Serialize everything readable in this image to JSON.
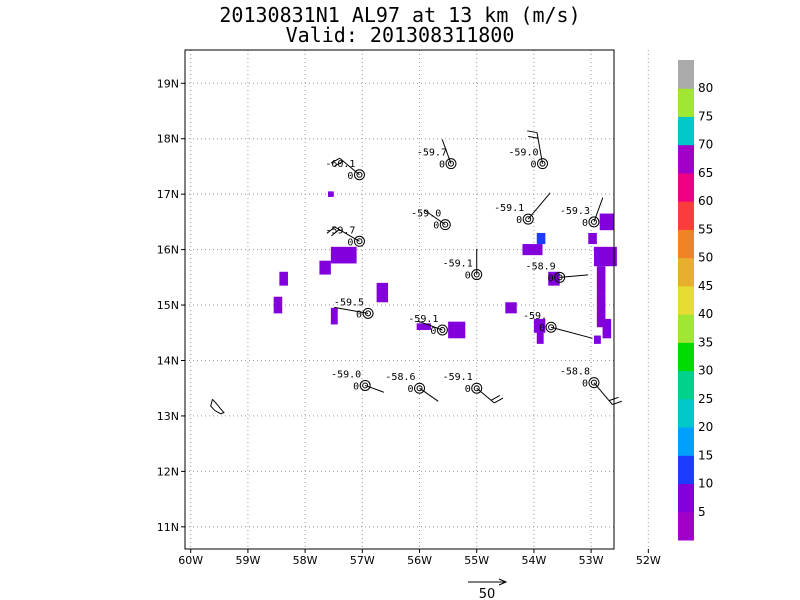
{
  "title": "20130831N1 AL97 at 13 km (m/s)",
  "subtitle": "Valid: 201308311800",
  "chart_data": {
    "type": "scatter",
    "description_units": "m/s",
    "xlim": [
      -60.1,
      -52.6
    ],
    "ylim": [
      10.6,
      19.6
    ],
    "x_ticks": [
      {
        "v": -60,
        "label": "60W"
      },
      {
        "v": -59,
        "label": "59W"
      },
      {
        "v": -58,
        "label": "58W"
      },
      {
        "v": -57,
        "label": "57W"
      },
      {
        "v": -56,
        "label": "56W"
      },
      {
        "v": -55,
        "label": "55W"
      },
      {
        "v": -54,
        "label": "54W"
      },
      {
        "v": -53,
        "label": "53W"
      },
      {
        "v": -52,
        "label": "52W"
      }
    ],
    "y_ticks": [
      {
        "v": 11,
        "label": "11N"
      },
      {
        "v": 12,
        "label": "12N"
      },
      {
        "v": 13,
        "label": "13N"
      },
      {
        "v": 14,
        "label": "14N"
      },
      {
        "v": 15,
        "label": "15N"
      },
      {
        "v": 16,
        "label": "16N"
      },
      {
        "v": 17,
        "label": "17N"
      },
      {
        "v": 18,
        "label": "18N"
      },
      {
        "v": 19,
        "label": "19N"
      }
    ],
    "grid": true,
    "stations": [
      {
        "lon": -57.05,
        "lat": 17.35,
        "temp": "-60.1",
        "wind": "0",
        "barb_dir": 230,
        "barb_len": 0.45,
        "flags": 2
      },
      {
        "lon": -55.45,
        "lat": 17.55,
        "temp": "-59.7",
        "wind": "0",
        "barb_dir": 200,
        "barb_len": 0.45,
        "flags": 0
      },
      {
        "lon": -53.85,
        "lat": 17.55,
        "temp": "-59.0",
        "wind": "0",
        "barb_dir": 190,
        "barb_len": 0.55,
        "flags": 2
      },
      {
        "lon": -57.05,
        "lat": 16.15,
        "temp": "-59.7",
        "wind": "0",
        "barb_dir": 240,
        "barb_len": 0.5,
        "flags": 2
      },
      {
        "lon": -55.55,
        "lat": 16.45,
        "temp": "-59.0",
        "wind": "0",
        "barb_dir": 235,
        "barb_len": 0.45,
        "flags": 0
      },
      {
        "lon": -54.1,
        "lat": 16.55,
        "temp": "-59.1",
        "wind": "0",
        "barb_dir": 140,
        "barb_len": 0.6,
        "flags": 0
      },
      {
        "lon": -52.95,
        "lat": 16.5,
        "temp": "-59.3",
        "wind": "0",
        "barb_dir": 160,
        "barb_len": 0.45,
        "flags": 0
      },
      {
        "lon": -55.0,
        "lat": 15.55,
        "temp": "-59.1",
        "wind": "0",
        "barb_dir": 180,
        "barb_len": 0.45,
        "flags": 0
      },
      {
        "lon": -53.55,
        "lat": 15.5,
        "temp": "-58.9",
        "wind": "0",
        "barb_dir": 95,
        "barb_len": 0.5,
        "flags": 0
      },
      {
        "lon": -56.9,
        "lat": 14.85,
        "temp": "-59.5",
        "wind": "0",
        "barb_dir": 260,
        "barb_len": 0.6,
        "flags": 0
      },
      {
        "lon": -55.6,
        "lat": 14.55,
        "temp": "-59.1",
        "wind": "0",
        "barb_dir": 250,
        "barb_len": 0.45,
        "flags": 0
      },
      {
        "lon": -53.7,
        "lat": 14.6,
        "temp": "-59.",
        "wind": "0",
        "barb_dir": 75,
        "barb_len": 0.75,
        "flags": 0
      },
      {
        "lon": -56.95,
        "lat": 13.55,
        "temp": "-59.0",
        "wind": "0",
        "barb_dir": 70,
        "barb_len": 0.35,
        "flags": 0
      },
      {
        "lon": -56.0,
        "lat": 13.5,
        "temp": "-58.6",
        "wind": "0",
        "barb_dir": 55,
        "barb_len": 0.4,
        "flags": 0
      },
      {
        "lon": -55.0,
        "lat": 13.5,
        "temp": "-59.1",
        "wind": "0",
        "barb_dir": 50,
        "barb_len": 0.4,
        "flags": 2
      },
      {
        "lon": -52.95,
        "lat": 13.6,
        "temp": "-58.8",
        "wind": "0",
        "barb_dir": 40,
        "barb_len": 0.5,
        "flags": 2
      }
    ],
    "wind_cells": [
      {
        "lon": -57.6,
        "lat": 16.95,
        "w": 0.1,
        "h": 0.1,
        "c": 1
      },
      {
        "lon": -57.55,
        "lat": 15.75,
        "w": 0.45,
        "h": 0.3,
        "c": 1
      },
      {
        "lon": -57.75,
        "lat": 15.55,
        "w": 0.2,
        "h": 0.25,
        "c": 1
      },
      {
        "lon": -58.45,
        "lat": 15.35,
        "w": 0.15,
        "h": 0.25,
        "c": 1
      },
      {
        "lon": -58.55,
        "lat": 14.85,
        "w": 0.15,
        "h": 0.3,
        "c": 1
      },
      {
        "lon": -57.55,
        "lat": 14.65,
        "w": 0.12,
        "h": 0.3,
        "c": 1
      },
      {
        "lon": -56.75,
        "lat": 15.05,
        "w": 0.2,
        "h": 0.35,
        "c": 1
      },
      {
        "lon": -56.05,
        "lat": 14.55,
        "w": 0.25,
        "h": 0.12,
        "c": 1
      },
      {
        "lon": -55.5,
        "lat": 14.4,
        "w": 0.3,
        "h": 0.3,
        "c": 1
      },
      {
        "lon": -54.5,
        "lat": 14.85,
        "w": 0.2,
        "h": 0.2,
        "c": 1
      },
      {
        "lon": -53.95,
        "lat": 16.1,
        "w": 0.15,
        "h": 0.2,
        "c": 2
      },
      {
        "lon": -54.2,
        "lat": 15.9,
        "w": 0.35,
        "h": 0.2,
        "c": 1
      },
      {
        "lon": -53.75,
        "lat": 15.35,
        "w": 0.2,
        "h": 0.25,
        "c": 1
      },
      {
        "lon": -54.0,
        "lat": 14.5,
        "w": 0.2,
        "h": 0.25,
        "c": 1
      },
      {
        "lon": -53.95,
        "lat": 14.3,
        "w": 0.12,
        "h": 0.25,
        "c": 1
      },
      {
        "lon": -52.85,
        "lat": 16.35,
        "w": 0.25,
        "h": 0.3,
        "c": 1
      },
      {
        "lon": -53.05,
        "lat": 16.1,
        "w": 0.15,
        "h": 0.2,
        "c": 1
      },
      {
        "lon": -52.95,
        "lat": 15.7,
        "w": 0.4,
        "h": 0.35,
        "c": 1
      },
      {
        "lon": -52.9,
        "lat": 15.2,
        "w": 0.15,
        "h": 0.5,
        "c": 1
      },
      {
        "lon": -52.9,
        "lat": 14.6,
        "w": 0.15,
        "h": 0.6,
        "c": 1
      },
      {
        "lon": -52.8,
        "lat": 14.4,
        "w": 0.15,
        "h": 0.35,
        "c": 1
      },
      {
        "lon": -52.95,
        "lat": 14.3,
        "w": 0.12,
        "h": 0.15,
        "c": 1
      }
    ],
    "land_outline": [
      [
        -59.62,
        13.3
      ],
      [
        -59.55,
        13.22
      ],
      [
        -59.48,
        13.13
      ],
      [
        -59.42,
        13.06
      ],
      [
        -59.48,
        13.04
      ],
      [
        -59.58,
        13.1
      ],
      [
        -59.65,
        13.18
      ],
      [
        -59.62,
        13.3
      ]
    ],
    "reference_vector": {
      "label": "50",
      "magnitude": 50
    }
  },
  "colorbar": {
    "labels": [
      "5",
      "10",
      "15",
      "20",
      "25",
      "30",
      "35",
      "40",
      "45",
      "50",
      "55",
      "60",
      "65",
      "70",
      "75",
      "80"
    ],
    "colors": [
      "#a000c8",
      "#8200dc",
      "#1e3cff",
      "#00a0ff",
      "#00c8c8",
      "#00d28c",
      "#00dc00",
      "#a0e632",
      "#e6dc32",
      "#e6af2d",
      "#f08228",
      "#fa3c3c",
      "#f00082",
      "#a000c8",
      "#00c8c8",
      "#a0e632",
      "#aaaaaa"
    ]
  }
}
